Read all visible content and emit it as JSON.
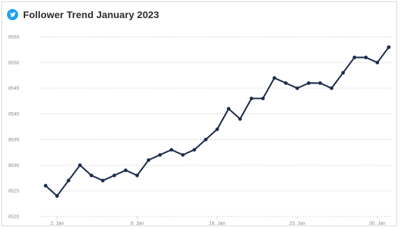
{
  "header": {
    "icon": "twitter-bird-icon",
    "title": "Follower Trend January 2023"
  },
  "colors": {
    "line": "#1f2e4d",
    "grid": "#c9c9c9",
    "icon": "#1da1f2"
  },
  "chart_data": {
    "type": "line",
    "title": "Follower Trend January 2023",
    "xlabel": "",
    "ylabel": "",
    "x": [
      1,
      2,
      3,
      4,
      5,
      6,
      7,
      8,
      9,
      10,
      11,
      12,
      13,
      14,
      15,
      16,
      17,
      18,
      19,
      20,
      21,
      22,
      23,
      24,
      25,
      26,
      27,
      28,
      29,
      30,
      31
    ],
    "series": [
      {
        "values": [
          8526,
          8524,
          8527,
          8530,
          8528,
          8527,
          8528,
          8529,
          8528,
          8531,
          8532,
          8533,
          8532,
          8533,
          8535,
          8537,
          8541,
          8539,
          8543,
          8543,
          8547,
          8546,
          8545,
          8546,
          8546,
          8545,
          8548,
          8551,
          8551,
          8550,
          8553
        ]
      }
    ],
    "ylim": [
      8520,
      8555
    ],
    "yticks": [
      8520,
      8525,
      8530,
      8535,
      8540,
      8545,
      8550,
      8555
    ],
    "ytick_labels": [
      "8520",
      "8525",
      "8530",
      "8535",
      "8540",
      "8545",
      "8550",
      "8555"
    ],
    "xticks": [
      2,
      9,
      16,
      23,
      30
    ],
    "xtick_labels": [
      "2. Jan",
      "9. Jan",
      "16. Jan",
      "23. Jan",
      "30. Jan"
    ],
    "grid": true,
    "legend": "none"
  }
}
